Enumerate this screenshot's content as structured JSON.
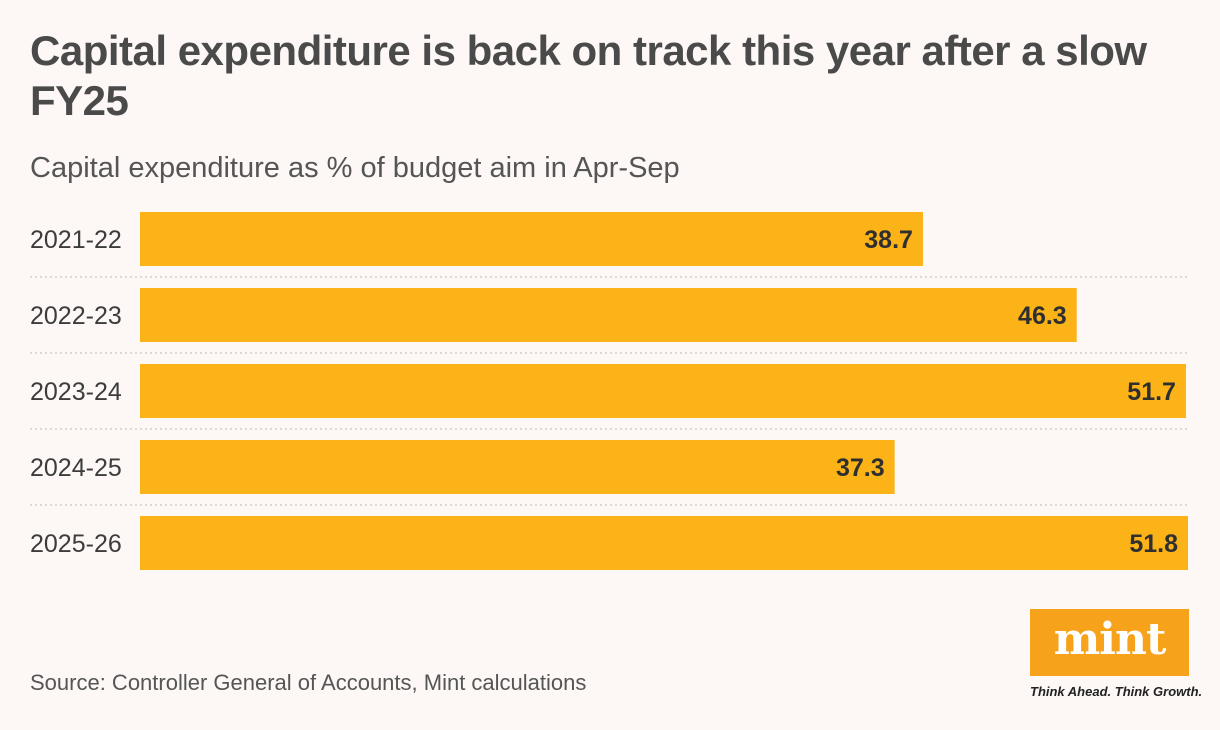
{
  "chart_data": {
    "type": "bar",
    "orientation": "horizontal",
    "title": "Capital expenditure is back on track this year after a slow FY25",
    "subtitle": "Capital expenditure as % of budget aim in Apr-Sep",
    "categories": [
      "2021-22",
      "2022-23",
      "2023-24",
      "2024-25",
      "2025-26"
    ],
    "values": [
      38.7,
      46.3,
      51.7,
      37.3,
      51.8
    ],
    "xlim": [
      0,
      51.8
    ],
    "bar_color": "#fbb317",
    "separator_lines": true,
    "source": "Source: Controller General of Accounts, Mint calculations"
  },
  "logo": {
    "word": "mint",
    "tagline": "Think Ahead. Think Growth.",
    "color": "#f7a21b"
  }
}
